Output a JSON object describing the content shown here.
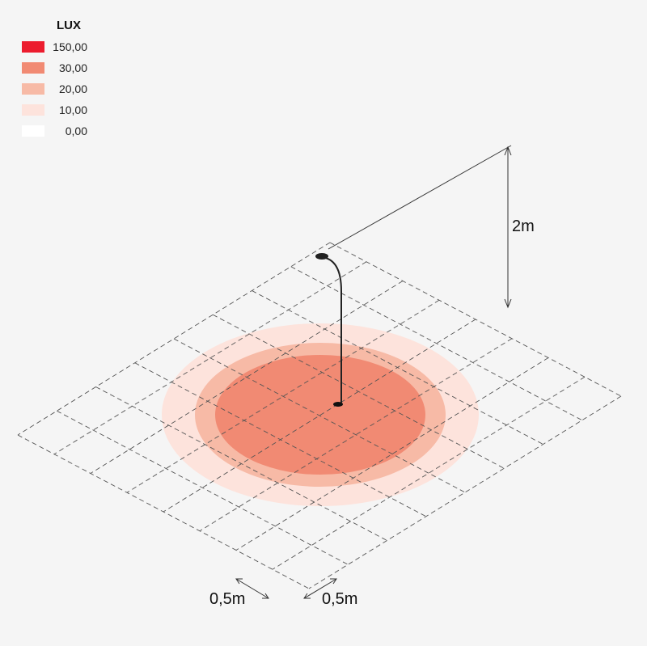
{
  "legend": {
    "title": "LUX",
    "entries": [
      {
        "label": "150,00",
        "color": "#ec1c2e"
      },
      {
        "label": "30,00",
        "color": "#f18a73"
      },
      {
        "label": "20,00",
        "color": "#f7baa6"
      },
      {
        "label": "10,00",
        "color": "#fde3dc"
      },
      {
        "label": "0,00",
        "color": "#ffffff"
      }
    ]
  },
  "dimensions": {
    "height": "2m",
    "grid_x": "0,5m",
    "grid_y": "0,5m"
  }
}
